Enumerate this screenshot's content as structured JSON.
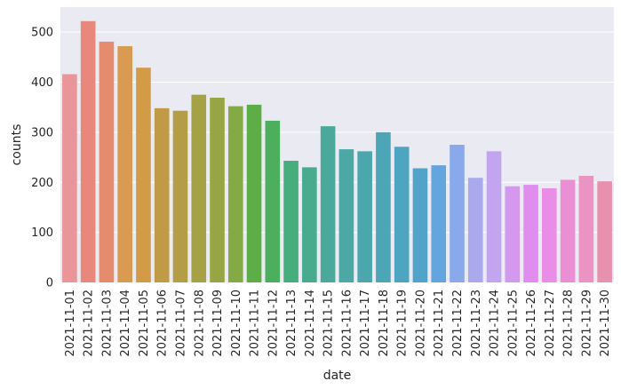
{
  "chart_data": {
    "type": "bar",
    "xlabel": "date",
    "ylabel": "counts",
    "ylim": [
      0,
      550
    ],
    "yticks": [
      0,
      100,
      200,
      300,
      400,
      500
    ],
    "grid": true,
    "background": "#eaeaf2",
    "categories": [
      "2021-11-01",
      "2021-11-02",
      "2021-11-03",
      "2021-11-04",
      "2021-11-05",
      "2021-11-06",
      "2021-11-07",
      "2021-11-08",
      "2021-11-09",
      "2021-11-10",
      "2021-11-11",
      "2021-11-12",
      "2021-11-13",
      "2021-11-14",
      "2021-11-15",
      "2021-11-16",
      "2021-11-17",
      "2021-11-18",
      "2021-11-19",
      "2021-11-20",
      "2021-11-21",
      "2021-11-22",
      "2021-11-23",
      "2021-11-24",
      "2021-11-25",
      "2021-11-26",
      "2021-11-27",
      "2021-11-28",
      "2021-11-29",
      "2021-11-30"
    ],
    "values": [
      416,
      522,
      481,
      472,
      429,
      348,
      343,
      375,
      369,
      352,
      355,
      323,
      243,
      230,
      312,
      266,
      262,
      300,
      271,
      228,
      234,
      275,
      209,
      262,
      192,
      195,
      188,
      205,
      213,
      202
    ],
    "colors": [
      "#ea9599",
      "#e8877c",
      "#e58c6e",
      "#d99b52",
      "#d39a48",
      "#c19a45",
      "#b39e46",
      "#a4a245",
      "#97a544",
      "#84aa45",
      "#5dae46",
      "#4caf5d",
      "#48ad7c",
      "#49ab8e",
      "#4aa99b",
      "#4ba8a5",
      "#4ca7ad",
      "#4ca6b5",
      "#4da5bf",
      "#52a3c9",
      "#64a5df",
      "#8aa9eb",
      "#aba9ee",
      "#c2a5ef",
      "#d498ef",
      "#e08def",
      "#e98de6",
      "#eb8fd5",
      "#eb93c3",
      "#e891ae"
    ]
  }
}
